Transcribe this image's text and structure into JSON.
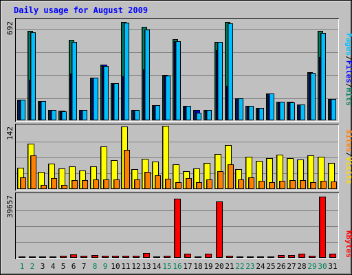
{
  "chart_data": [
    {
      "type": "bar",
      "title": "Daily usage for August 2009",
      "categories": [
        "1",
        "2",
        "3",
        "4",
        "5",
        "6",
        "7",
        "8",
        "9",
        "10",
        "11",
        "12",
        "13",
        "14",
        "15",
        "16",
        "17",
        "18",
        "19",
        "20",
        "21",
        "22",
        "23",
        "24",
        "25",
        "26",
        "27",
        "28",
        "29",
        "30",
        "31"
      ],
      "weekend_days": [
        "1",
        "2",
        "8",
        "9",
        "15",
        "16",
        "22",
        "23",
        "29",
        "30"
      ],
      "ytick": "692",
      "ylim": [
        0,
        692
      ],
      "legend": [
        "Pages",
        "/",
        "Files",
        "/",
        "Hits"
      ],
      "legend_placement": "right",
      "grid": true,
      "series": [
        {
          "name": "Hits",
          "color": "#00805c",
          "values": [
            142,
            615,
            131,
            72,
            65,
            553,
            72,
            295,
            386,
            258,
            678,
            72,
            643,
            105,
            313,
            560,
            100,
            72,
            72,
            540,
            678,
            152,
            100,
            86,
            186,
            128,
            126,
            109,
            332,
            615,
            146
          ]
        },
        {
          "name": "Files",
          "color": "#0000ff",
          "values": [
            142,
            282,
            131,
            72,
            65,
            324,
            72,
            296,
            386,
            258,
            305,
            72,
            353,
            105,
            310,
            547,
            100,
            72,
            72,
            485,
            238,
            152,
            100,
            86,
            186,
            128,
            126,
            109,
            325,
            435,
            146
          ]
        },
        {
          "name": "Pages",
          "color": "#00bfff",
          "values": [
            142,
            605,
            131,
            72,
            62,
            540,
            72,
            294,
            375,
            258,
            673,
            72,
            626,
            103,
            310,
            545,
            100,
            52,
            72,
            538,
            669,
            152,
            100,
            86,
            186,
            128,
            123,
            109,
            328,
            600,
            146
          ]
        }
      ]
    },
    {
      "type": "bar",
      "categories": [
        "1",
        "2",
        "3",
        "4",
        "5",
        "6",
        "7",
        "8",
        "9",
        "10",
        "11",
        "12",
        "13",
        "14",
        "15",
        "16",
        "17",
        "18",
        "19",
        "20",
        "21",
        "22",
        "23",
        "24",
        "25",
        "26",
        "27",
        "28",
        "29",
        "30",
        "31"
      ],
      "ytick": "142",
      "ylim": [
        0,
        142
      ],
      "legend": [
        "Sites",
        "/",
        "Visits"
      ],
      "legend_placement": "right",
      "grid": true,
      "series": [
        {
          "name": "Visits",
          "color": "#ffff00",
          "values": [
            48,
            102,
            38,
            57,
            47,
            51,
            41,
            51,
            95,
            65,
            140,
            44,
            68,
            61,
            142,
            55,
            40,
            47,
            59,
            79,
            99,
            45,
            72,
            63,
            69,
            77,
            70,
            66,
            76,
            72,
            59
          ]
        },
        {
          "name": "Sites",
          "color": "#ff8000",
          "values": [
            26,
            76,
            10,
            25,
            10,
            20,
            20,
            22,
            21,
            21,
            88,
            21,
            39,
            31,
            23,
            16,
            24,
            15,
            21,
            40,
            56,
            22,
            26,
            19,
            16,
            19,
            20,
            20,
            16,
            19,
            17
          ]
        }
      ]
    },
    {
      "type": "bar",
      "categories": [
        "1",
        "2",
        "3",
        "4",
        "5",
        "6",
        "7",
        "8",
        "9",
        "10",
        "11",
        "12",
        "13",
        "14",
        "15",
        "16",
        "17",
        "18",
        "19",
        "20",
        "21",
        "22",
        "23",
        "24",
        "25",
        "26",
        "27",
        "28",
        "29",
        "30",
        "31"
      ],
      "ytick": "39657",
      "ylim": [
        0,
        39657
      ],
      "legend": [
        "KBytes"
      ],
      "legend_placement": "right",
      "grid": true,
      "series": [
        {
          "name": "KBytes",
          "color": "#ff0000",
          "values": [
            900,
            850,
            950,
            900,
            1400,
            2000,
            1400,
            1700,
            1400,
            1100,
            1400,
            1400,
            2900,
            850,
            1300,
            37000,
            2400,
            650,
            2400,
            35500,
            1500,
            850,
            850,
            850,
            900,
            1700,
            1700,
            2400,
            1400,
            38300,
            2400
          ]
        }
      ]
    },
    {
      "colors": {
        "background": "#c0c0c0",
        "title": "#0000ff",
        "weekday_label": "#000000",
        "weekend_label": "#00805c",
        "grid": "#808080",
        "legend_separator": "#000000"
      }
    }
  ]
}
